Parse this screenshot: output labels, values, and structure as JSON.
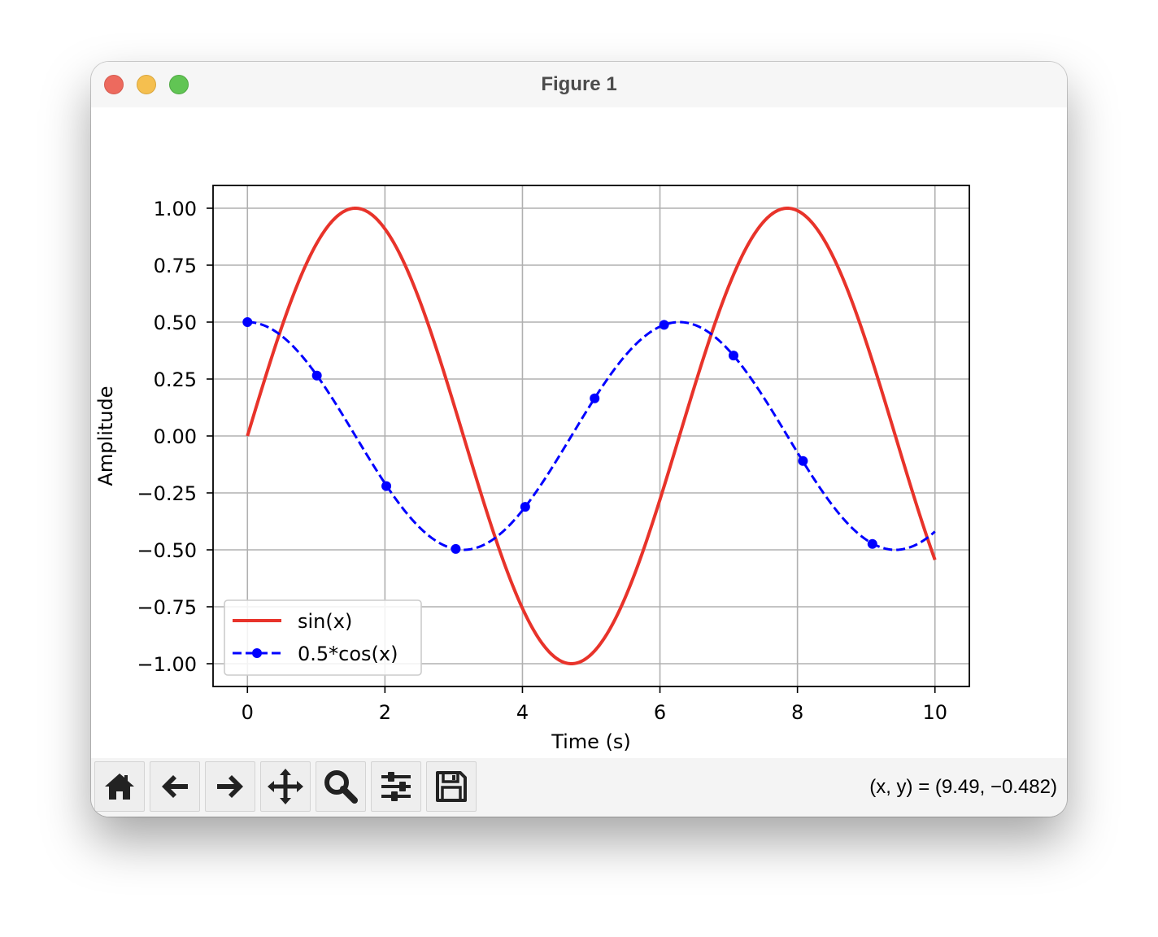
{
  "window": {
    "title": "Figure 1"
  },
  "toolbar": {
    "buttons": [
      {
        "icon": "home-icon"
      },
      {
        "icon": "back-arrow-icon"
      },
      {
        "icon": "forward-arrow-icon"
      },
      {
        "icon": "pan-icon"
      },
      {
        "icon": "zoom-icon"
      },
      {
        "icon": "configure-subplots-icon"
      },
      {
        "icon": "save-icon"
      }
    ],
    "coords": "(x, y) = (9.49, −0.482)"
  },
  "chart_data": {
    "type": "line",
    "title": "",
    "xlabel": "Time (s)",
    "ylabel": "Amplitude",
    "xlim": [
      -0.5,
      10.5
    ],
    "ylim": [
      -1.1,
      1.1
    ],
    "xticks": [
      0,
      2,
      4,
      6,
      8,
      10
    ],
    "xtick_labels": [
      "0",
      "2",
      "4",
      "6",
      "8",
      "10"
    ],
    "yticks": [
      1.0,
      0.75,
      0.5,
      0.25,
      0.0,
      -0.25,
      -0.5,
      -0.75,
      -1.0
    ],
    "ytick_labels": [
      "1.00",
      "0.75",
      "0.50",
      "0.25",
      "0.00",
      "−0.25",
      "−0.50",
      "−0.75",
      "−1.00"
    ],
    "grid": true,
    "legend_position": "lower-left",
    "series": [
      {
        "name": "sin(x)",
        "function": "sin(x)",
        "x_range": [
          0,
          10
        ],
        "color": "#e8332a",
        "style": "solid",
        "markers": false
      },
      {
        "name": "0.5*cos(x)",
        "function": "0.5*cos(x)",
        "x_range": [
          0,
          10
        ],
        "color": "#0000ff",
        "style": "dashed",
        "markers": true,
        "marker_points": [
          {
            "x": 0.0,
            "y": 0.5
          },
          {
            "x": 1.01,
            "y": 0.265
          },
          {
            "x": 2.02,
            "y": -0.22
          },
          {
            "x": 3.03,
            "y": -0.496
          },
          {
            "x": 4.04,
            "y": -0.311
          },
          {
            "x": 5.05,
            "y": 0.165
          },
          {
            "x": 6.06,
            "y": 0.488
          },
          {
            "x": 7.07,
            "y": 0.353
          },
          {
            "x": 8.08,
            "y": -0.11
          },
          {
            "x": 9.09,
            "y": -0.474
          }
        ]
      }
    ]
  }
}
